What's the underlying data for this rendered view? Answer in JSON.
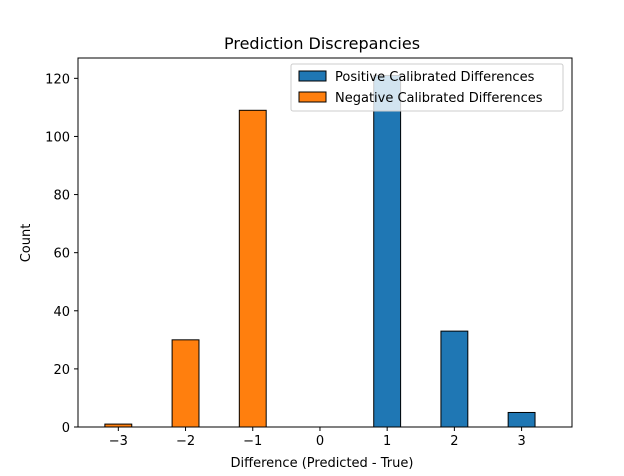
{
  "chart_data": {
    "type": "bar",
    "title": "Prediction Discrepancies",
    "xlabel": "Difference (Predicted - True)",
    "ylabel": "Count",
    "x": [
      -3,
      -2,
      -1,
      0,
      1,
      2,
      3
    ],
    "x_tick_labels": [
      "−3",
      "−2",
      "−1",
      "0",
      "1",
      "2",
      "3"
    ],
    "y_ticks": [
      0,
      20,
      40,
      60,
      80,
      100,
      120
    ],
    "xlim": [
      -3.6,
      3.75
    ],
    "ylim": [
      0,
      127
    ],
    "legend_position": "top-right",
    "series": [
      {
        "name": "Positive Calibrated Differences",
        "color": "#1f77b4",
        "values": [
          0,
          0,
          0,
          0,
          121,
          33,
          5
        ]
      },
      {
        "name": "Negative Calibrated Differences",
        "color": "#ff7f0e",
        "values": [
          1,
          30,
          109,
          0,
          0,
          0,
          0
        ]
      }
    ],
    "grid": false
  }
}
